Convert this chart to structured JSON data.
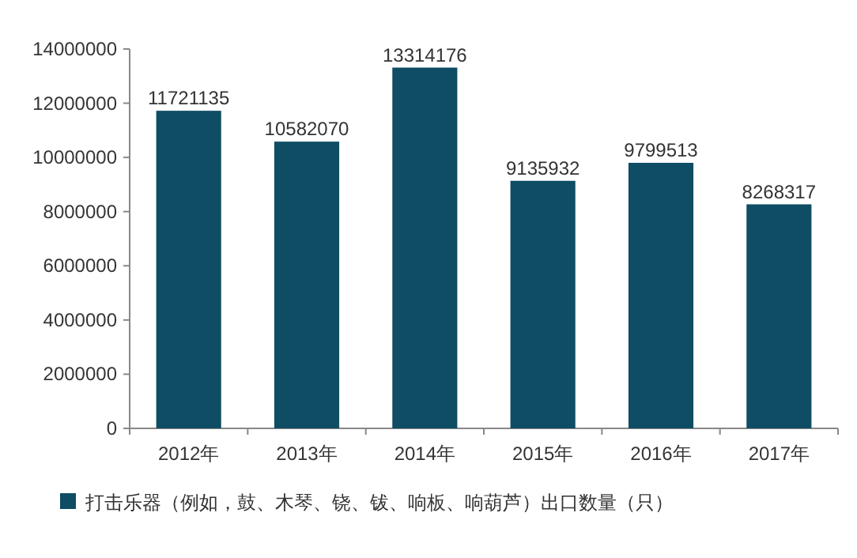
{
  "chart_data": {
    "type": "bar",
    "categories": [
      "2012年",
      "2013年",
      "2014年",
      "2015年",
      "2016年",
      "2017年"
    ],
    "series": [
      {
        "name": "打击乐器（例如，鼓、木琴、铙、钹、响板、响葫芦）出口数量（只）",
        "color": "#0e4d64",
        "values": [
          11721135,
          10582070,
          13314176,
          9135932,
          9799513,
          8268317
        ]
      }
    ],
    "ylim": [
      0,
      14000000
    ],
    "yticks": [
      0,
      2000000,
      4000000,
      6000000,
      8000000,
      10000000,
      12000000,
      14000000
    ],
    "data_labels": true,
    "legend": "bottom"
  }
}
